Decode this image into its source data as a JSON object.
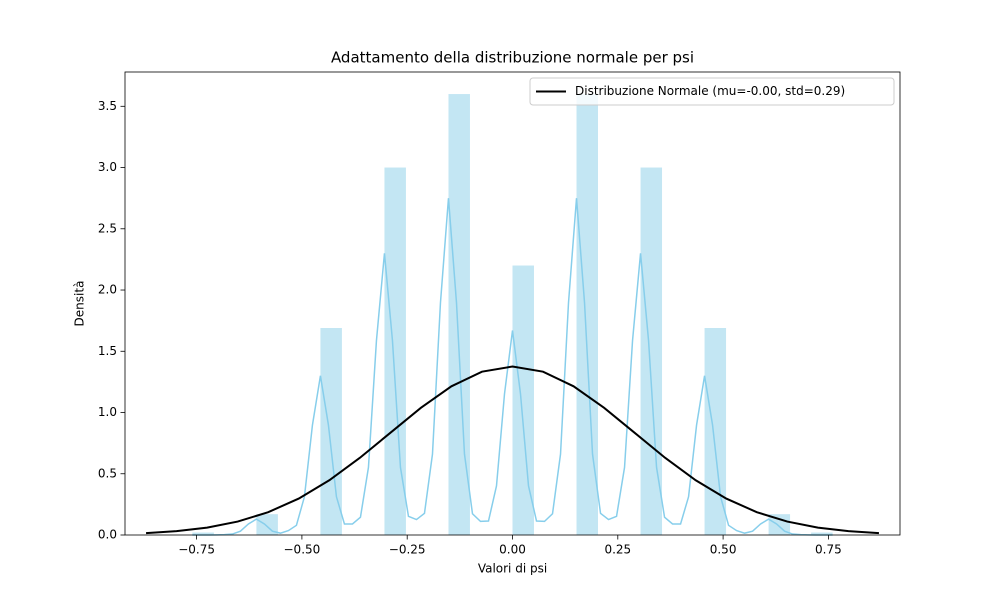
{
  "chart_data": {
    "type": "histogram",
    "title": "Adattamento della distribuzione normale per psi",
    "x_label": "Valori di psi",
    "y_label": "Densità",
    "bins": [
      -0.76,
      -0.709,
      -0.659,
      -0.608,
      -0.557,
      -0.507,
      -0.456,
      -0.405,
      -0.355,
      -0.304,
      -0.253,
      -0.203,
      -0.152,
      -0.101,
      -0.051,
      0,
      0.051,
      0.101,
      0.152,
      0.203,
      0.253,
      0.304,
      0.355,
      0.405,
      0.456,
      0.507,
      0.557,
      0.608,
      0.659,
      0.709,
      0.76
    ],
    "values": [
      0.02,
      0,
      0,
      0.17,
      0,
      0,
      1.69,
      0,
      0,
      3.0,
      0,
      0,
      3.6,
      0,
      0,
      2.2,
      0,
      0,
      3.6,
      0,
      0,
      3.0,
      0,
      0,
      1.69,
      0,
      0,
      0.17,
      0,
      0.02
    ],
    "color": "#c3e6f3",
    "kde": {
      "color": "#87ceeb",
      "x": [
        -0.76,
        -0.741,
        -0.722,
        -0.703,
        -0.684,
        -0.665,
        -0.646,
        -0.627,
        -0.608,
        -0.589,
        -0.57,
        -0.551,
        -0.532,
        -0.513,
        -0.494,
        -0.475,
        -0.456,
        -0.437,
        -0.418,
        -0.399,
        -0.38,
        -0.361,
        -0.342,
        -0.323,
        -0.304,
        -0.285,
        -0.266,
        -0.247,
        -0.228,
        -0.209,
        -0.19,
        -0.171,
        -0.152,
        -0.133,
        -0.114,
        -0.095,
        -0.076,
        -0.057,
        -0.038,
        -0.019,
        0,
        0.019,
        0.038,
        0.057,
        0.076,
        0.095,
        0.114,
        0.133,
        0.152,
        0.171,
        0.19,
        0.209,
        0.228,
        0.247,
        0.266,
        0.285,
        0.304,
        0.323,
        0.342,
        0.361,
        0.38,
        0.399,
        0.418,
        0.437,
        0.456,
        0.475,
        0.494,
        0.513,
        0.532,
        0.551,
        0.57,
        0.589,
        0.608,
        0.627,
        0.646,
        0.665,
        0.684,
        0.703,
        0.722,
        0.741,
        0.76
      ],
      "values": [
        0,
        0,
        0,
        0.001,
        0.003,
        0.008,
        0.031,
        0.09,
        0.13,
        0.09,
        0.031,
        0.015,
        0.036,
        0.079,
        0.312,
        0.897,
        1.3,
        0.897,
        0.312,
        0.09,
        0.09,
        0.145,
        0.552,
        1.587,
        2.3,
        1.587,
        0.552,
        0.152,
        0.126,
        0.177,
        0.66,
        1.898,
        2.75,
        1.898,
        0.66,
        0.173,
        0.111,
        0.114,
        0.401,
        1.152,
        1.67,
        1.152,
        0.401,
        0.114,
        0.111,
        0.173,
        0.66,
        1.898,
        2.75,
        1.898,
        0.66,
        0.177,
        0.126,
        0.152,
        0.552,
        1.587,
        2.3,
        1.587,
        0.552,
        0.145,
        0.09,
        0.09,
        0.312,
        0.897,
        1.3,
        0.897,
        0.312,
        0.079,
        0.036,
        0.015,
        0.031,
        0.09,
        0.13,
        0.09,
        0.031,
        0.008,
        0.003,
        0.001,
        0,
        0,
        0
      ]
    },
    "fit": {
      "name": "Distribuzione Normale (mu=-0.00, std=0.29)",
      "color": "#000000",
      "x": [
        -0.87,
        -0.7975,
        -0.725,
        -0.6525,
        -0.58,
        -0.5075,
        -0.435,
        -0.3625,
        -0.29,
        -0.2175,
        -0.145,
        -0.0725,
        0,
        0.0725,
        0.145,
        0.2175,
        0.29,
        0.3625,
        0.435,
        0.5075,
        0.58,
        0.6525,
        0.725,
        0.7975,
        0.87
      ],
      "values": [
        0.0153,
        0.0313,
        0.0604,
        0.1095,
        0.1862,
        0.2976,
        0.4467,
        0.6298,
        0.8344,
        1.0384,
        1.2141,
        1.3333,
        1.3757,
        1.3333,
        1.2141,
        1.0384,
        0.8344,
        0.6298,
        0.4467,
        0.2976,
        0.1862,
        0.1095,
        0.0604,
        0.0313,
        0.0153
      ]
    },
    "legend": "upper right",
    "xlim": [
      -0.92,
      0.92
    ],
    "ylim": [
      0,
      3.78
    ],
    "xticks": [
      {
        "value": -0.75,
        "label": "−0.75"
      },
      {
        "value": -0.5,
        "label": "−0.50"
      },
      {
        "value": -0.25,
        "label": "−0.25"
      },
      {
        "value": 0,
        "label": "0.00"
      },
      {
        "value": 0.25,
        "label": "0.25"
      },
      {
        "value": 0.5,
        "label": "0.50"
      },
      {
        "value": 0.75,
        "label": "0.75"
      }
    ],
    "yticks": [
      {
        "value": 0,
        "label": "0.0"
      },
      0.5,
      {
        "value": 1,
        "label": "1.0"
      },
      1.5,
      {
        "value": 2,
        "label": "2.0"
      },
      2.5,
      {
        "value": 3,
        "label": "3.0"
      },
      3.5
    ]
  }
}
